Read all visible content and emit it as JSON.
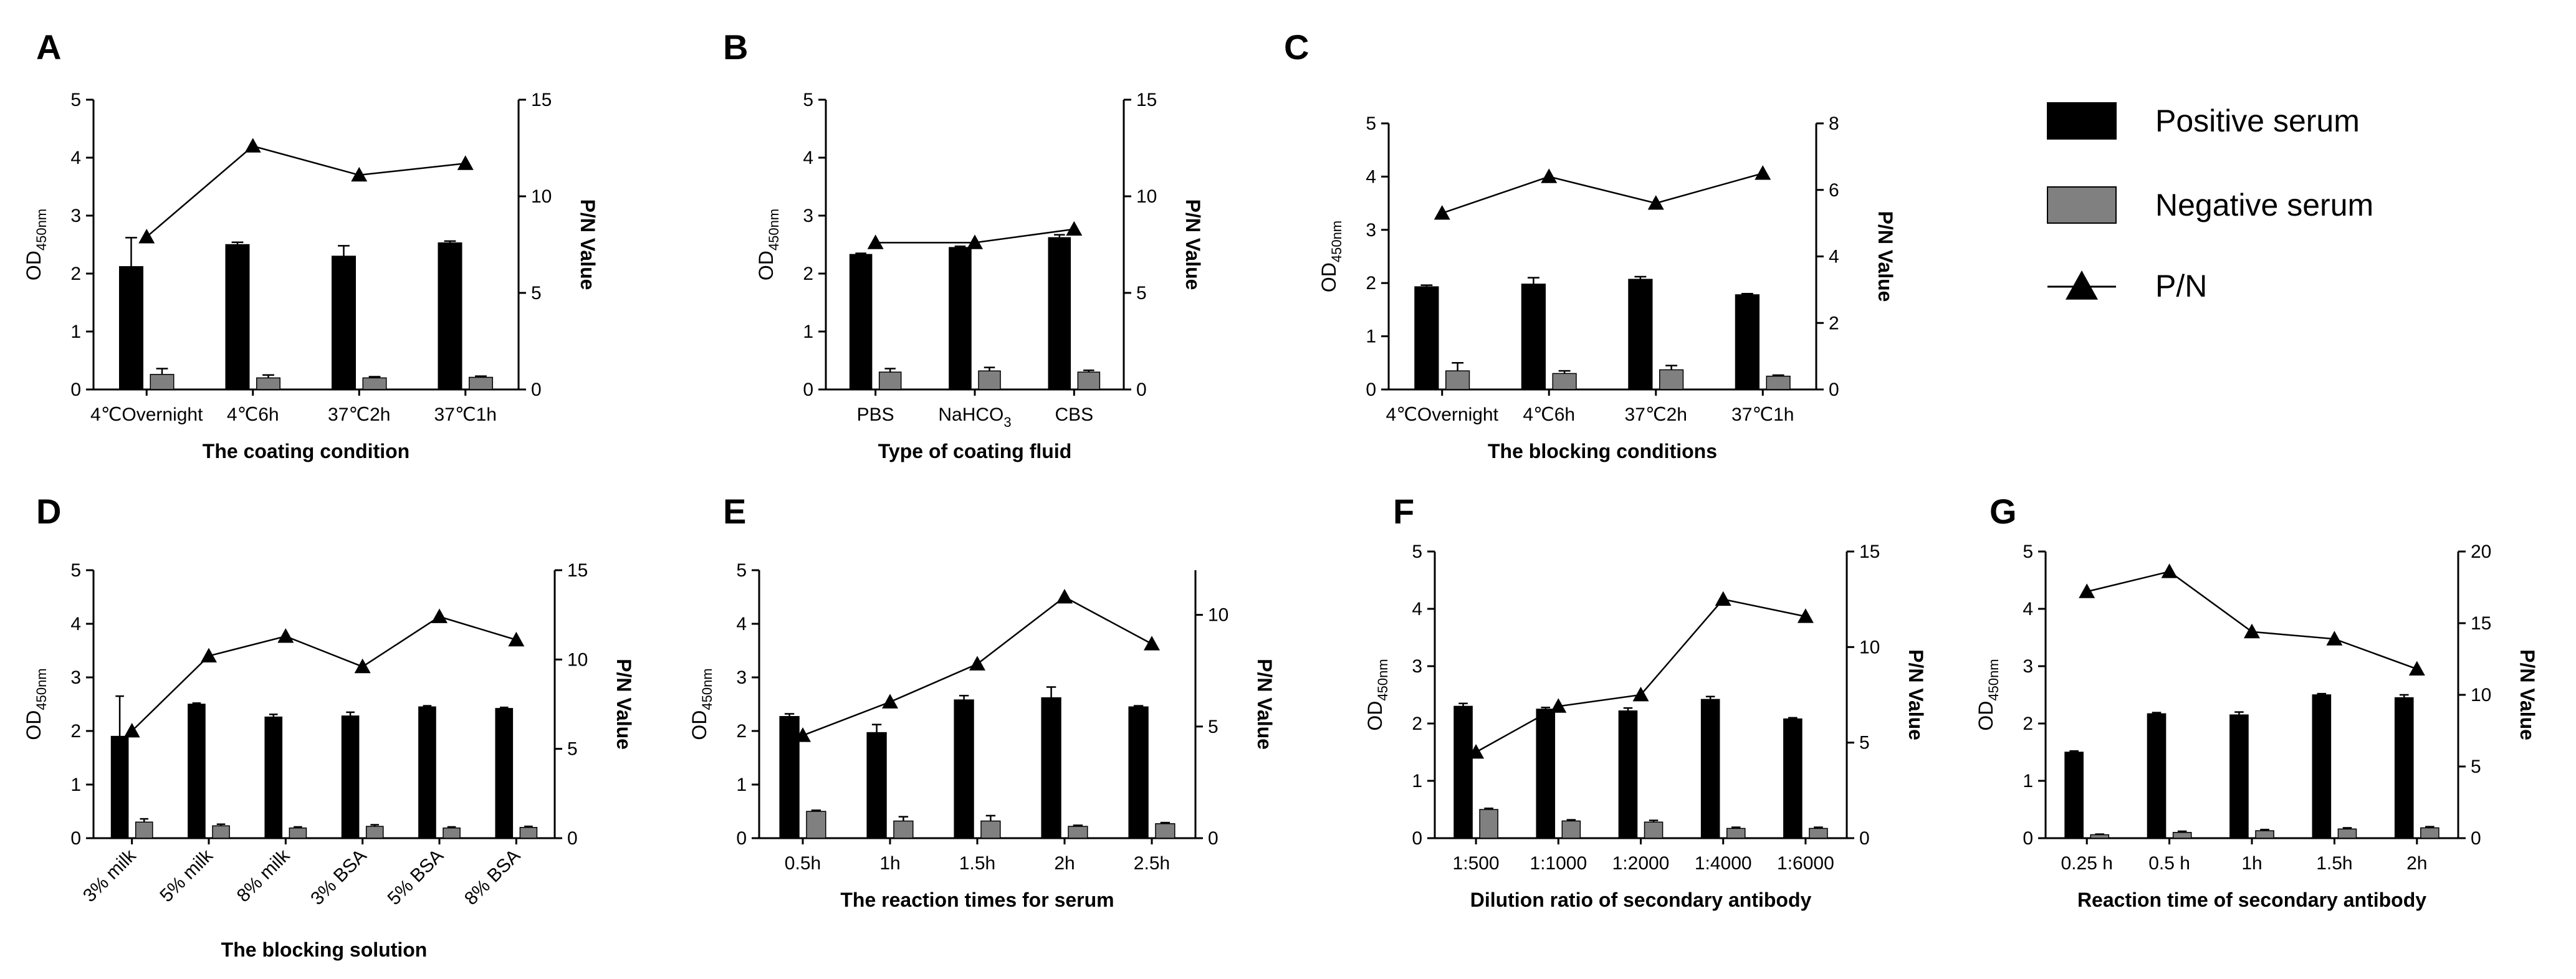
{
  "figure_title": "",
  "legend": [
    {
      "label": "Positive serum",
      "kind": "bar",
      "color": "#000000"
    },
    {
      "label": "Negative serum",
      "kind": "bar",
      "color": "#808080"
    },
    {
      "label": "P/N",
      "kind": "line-triangle",
      "color": "#000000"
    }
  ],
  "chart_data": [
    {
      "panel": "A",
      "type": "bar",
      "title": "",
      "categories": [
        "4℃Overnight",
        "4℃6h",
        "37℃2h",
        "37℃1h"
      ],
      "xlabel": "The  coating condition",
      "ylabel": "OD450nm",
      "ylabel_main": "OD",
      "ylabel_sub": "450nm",
      "ylim": [
        0,
        5
      ],
      "yticks": [
        0,
        1,
        2,
        3,
        4,
        5
      ],
      "y2label": "P/N Value",
      "y2lim": [
        0,
        15
      ],
      "y2ticks": [
        0,
        5,
        10,
        15
      ],
      "series": [
        {
          "name": "Positive serum",
          "axis": "left",
          "values": [
            2.12,
            2.5,
            2.3,
            2.53
          ],
          "errors": [
            0.5,
            0.04,
            0.18,
            0.03
          ]
        },
        {
          "name": "Negative serum",
          "axis": "left",
          "values": [
            0.26,
            0.2,
            0.2,
            0.21
          ],
          "errors": [
            0.1,
            0.05,
            0.02,
            0.02
          ]
        },
        {
          "name": "P/N",
          "axis": "right",
          "type": "line",
          "values": [
            7.9,
            12.6,
            11.1,
            11.7
          ]
        }
      ]
    },
    {
      "panel": "B",
      "type": "bar",
      "title": "",
      "categories": [
        "PBS",
        "NaHCO3",
        "CBS"
      ],
      "category_display": [
        [
          "PBS"
        ],
        [
          "NaHCO",
          "3"
        ],
        [
          "CBS"
        ]
      ],
      "xlabel": "Type of coating fluid",
      "ylabel": "OD450nm",
      "ylabel_main": "OD",
      "ylabel_sub": "450nm",
      "ylim": [
        0,
        5
      ],
      "yticks": [
        0,
        1,
        2,
        3,
        4,
        5
      ],
      "y2label": "P/N Value",
      "y2lim": [
        0,
        15
      ],
      "y2ticks": [
        0,
        5,
        10,
        15
      ],
      "series": [
        {
          "name": "Positive serum",
          "axis": "left",
          "values": [
            2.33,
            2.45,
            2.62
          ],
          "errors": [
            0.02,
            0.02,
            0.05
          ]
        },
        {
          "name": "Negative serum",
          "axis": "left",
          "values": [
            0.3,
            0.32,
            0.3
          ],
          "errors": [
            0.06,
            0.06,
            0.03
          ]
        },
        {
          "name": "P/N",
          "axis": "right",
          "type": "line",
          "values": [
            7.6,
            7.6,
            8.3
          ]
        }
      ]
    },
    {
      "panel": "C",
      "type": "bar",
      "title": "",
      "categories": [
        "4℃Overnight",
        "4℃6h",
        "37℃2h",
        "37℃1h"
      ],
      "xlabel": "The blocking conditions",
      "ylabel": "OD450nm",
      "ylabel_main": "OD",
      "ylabel_sub": "450nm",
      "ylim": [
        0,
        5
      ],
      "yticks": [
        0,
        1,
        2,
        3,
        4,
        5
      ],
      "y2label": "P/N Value",
      "y2lim": [
        0,
        8
      ],
      "y2ticks": [
        0,
        2,
        4,
        6,
        8
      ],
      "series": [
        {
          "name": "Positive serum",
          "axis": "left",
          "values": [
            1.93,
            1.98,
            2.07,
            1.78
          ],
          "errors": [
            0.03,
            0.12,
            0.05,
            0.02
          ]
        },
        {
          "name": "Negative serum",
          "axis": "left",
          "values": [
            0.35,
            0.3,
            0.37,
            0.25
          ],
          "errors": [
            0.15,
            0.05,
            0.08,
            0.02
          ]
        },
        {
          "name": "P/N",
          "axis": "right",
          "type": "line",
          "values": [
            5.3,
            6.4,
            5.6,
            6.5
          ]
        }
      ]
    },
    {
      "panel": "D",
      "type": "bar",
      "title": "",
      "categories": [
        "3% milk",
        "5% milk",
        "8% milk",
        "3% BSA",
        "5% BSA",
        "8% BSA"
      ],
      "xlabel": "The blocking solution",
      "ylabel": "OD450nm",
      "ylabel_main": "OD",
      "ylabel_sub": "450nm",
      "ylim": [
        0,
        5
      ],
      "yticks": [
        0,
        1,
        2,
        3,
        4,
        5
      ],
      "y2label": "P/N Value",
      "y2lim": [
        0,
        15
      ],
      "y2ticks": [
        0,
        5,
        10,
        15
      ],
      "series": [
        {
          "name": "Positive serum",
          "axis": "left",
          "values": [
            1.9,
            2.5,
            2.26,
            2.28,
            2.45,
            2.42
          ],
          "errors": [
            0.75,
            0.02,
            0.05,
            0.07,
            0.02,
            0.02
          ]
        },
        {
          "name": "Negative serum",
          "axis": "left",
          "values": [
            0.3,
            0.23,
            0.19,
            0.22,
            0.19,
            0.2
          ],
          "errors": [
            0.06,
            0.03,
            0.02,
            0.03,
            0.02,
            0.02
          ]
        },
        {
          "name": "P/N",
          "axis": "right",
          "type": "line",
          "values": [
            6.0,
            10.2,
            11.3,
            9.6,
            12.4,
            11.1
          ]
        }
      ]
    },
    {
      "panel": "E",
      "type": "bar",
      "title": "",
      "categories": [
        "0.5h",
        "1h",
        "1.5h",
        "2h",
        "2.5h"
      ],
      "xlabel": "The  reaction times for serum",
      "ylabel": "OD450nm",
      "ylabel_main": "OD",
      "ylabel_sub": "450nm",
      "ylim": [
        0,
        5
      ],
      "yticks": [
        0,
        1,
        2,
        3,
        4,
        5
      ],
      "y2label": "P/N Value",
      "y2lim": [
        0,
        12
      ],
      "y2ticks": [
        0,
        5,
        10
      ],
      "series": [
        {
          "name": "Positive serum",
          "axis": "left",
          "values": [
            2.27,
            1.97,
            2.58,
            2.62,
            2.45
          ],
          "errors": [
            0.05,
            0.15,
            0.08,
            0.2,
            0.02
          ]
        },
        {
          "name": "Negative serum",
          "axis": "left",
          "values": [
            0.5,
            0.32,
            0.32,
            0.22,
            0.27
          ],
          "errors": [
            0.02,
            0.08,
            0.1,
            0.02,
            0.02
          ]
        },
        {
          "name": "P/N",
          "axis": "right",
          "type": "line",
          "values": [
            4.6,
            6.1,
            7.8,
            10.8,
            8.7
          ]
        }
      ]
    },
    {
      "panel": "F",
      "type": "bar",
      "title": "",
      "categories": [
        "1:500",
        "1:1000",
        "1:2000",
        "1:4000",
        "1:6000"
      ],
      "xlabel": "Dilution ratio of secondary antibody",
      "ylabel": "OD450nm",
      "ylabel_main": "OD",
      "ylabel_sub": "450nm",
      "ylim": [
        0,
        5
      ],
      "yticks": [
        0,
        1,
        2,
        3,
        4,
        5
      ],
      "y2label": "P/N Value",
      "y2lim": [
        0,
        15
      ],
      "y2ticks": [
        0,
        5,
        10,
        15
      ],
      "series": [
        {
          "name": "Positive serum",
          "axis": "left",
          "values": [
            2.3,
            2.25,
            2.22,
            2.42,
            2.08
          ],
          "errors": [
            0.05,
            0.03,
            0.05,
            0.05,
            0.02
          ]
        },
        {
          "name": "Negative serum",
          "axis": "left",
          "values": [
            0.5,
            0.3,
            0.28,
            0.17,
            0.17
          ],
          "errors": [
            0.02,
            0.02,
            0.03,
            0.02,
            0.02
          ]
        },
        {
          "name": "P/N",
          "axis": "right",
          "type": "line",
          "values": [
            4.5,
            6.9,
            7.5,
            12.5,
            11.6
          ]
        }
      ]
    },
    {
      "panel": "G",
      "type": "bar",
      "title": "",
      "categories": [
        "0.25 h",
        "0.5 h",
        "1h",
        "1.5h",
        "2h"
      ],
      "xlabel": "Reaction time of secondary antibody",
      "ylabel": "OD450nm",
      "ylabel_main": "OD",
      "ylabel_sub": "450nm",
      "ylim": [
        0,
        5
      ],
      "yticks": [
        0,
        1,
        2,
        3,
        4,
        5
      ],
      "y2label": "P/N Value",
      "y2lim": [
        0,
        20
      ],
      "y2ticks": [
        0,
        5,
        10,
        15,
        20
      ],
      "series": [
        {
          "name": "Positive serum",
          "axis": "left",
          "values": [
            1.5,
            2.17,
            2.15,
            2.5,
            2.45
          ],
          "errors": [
            0.02,
            0.02,
            0.05,
            0.02,
            0.05
          ]
        },
        {
          "name": "Negative serum",
          "axis": "left",
          "values": [
            0.06,
            0.1,
            0.13,
            0.16,
            0.18
          ],
          "errors": [
            0.01,
            0.02,
            0.02,
            0.02,
            0.02
          ]
        },
        {
          "name": "P/N",
          "axis": "right",
          "type": "line",
          "values": [
            17.2,
            18.6,
            14.4,
            13.9,
            11.8
          ]
        }
      ]
    }
  ]
}
